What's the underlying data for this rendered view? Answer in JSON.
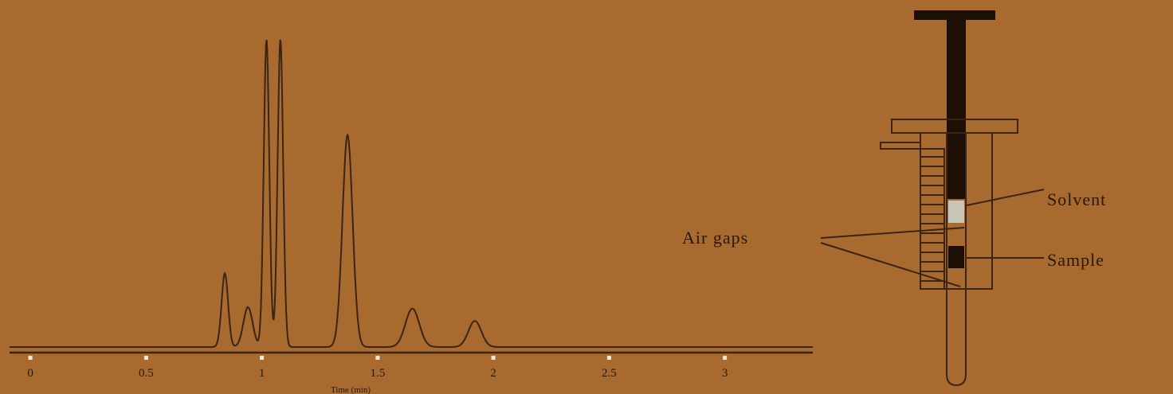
{
  "chart_data": {
    "type": "line",
    "title": "",
    "xlabel": "Time (min)",
    "ylabel": "",
    "xlim": [
      -0.09,
      3.38
    ],
    "ylim": [
      0,
      100
    ],
    "ticks": [
      0,
      0.5,
      1,
      1.5,
      2,
      2.5,
      3
    ],
    "tick_labels": [
      "0",
      "0.5",
      "1",
      "1.5",
      "2",
      "2.5",
      "3"
    ],
    "grid": false,
    "line_color": "#3a2414",
    "peaks": [
      {
        "t": 0.84,
        "height": 24,
        "width": 0.014
      },
      {
        "t": 0.94,
        "height": 13,
        "width": 0.02
      },
      {
        "t": 1.02,
        "height": 100,
        "width": 0.012
      },
      {
        "t": 1.08,
        "height": 100,
        "width": 0.012
      },
      {
        "t": 1.37,
        "height": 69,
        "width": 0.022
      },
      {
        "t": 1.65,
        "height": 12.5,
        "width": 0.03
      },
      {
        "t": 1.92,
        "height": 8.5,
        "width": 0.028
      }
    ]
  },
  "syringe": {
    "labels": {
      "solvent": "Solvent",
      "air_gaps": "Air gaps",
      "sample": "Sample"
    },
    "colors": {
      "plunger": "#1c1006",
      "solvent": "#c9c4b8",
      "sample": "#1c1006",
      "outline": "#3a2414"
    }
  },
  "colors": {
    "background": "#a86a2e",
    "tick_mark": "#f2ead8"
  }
}
